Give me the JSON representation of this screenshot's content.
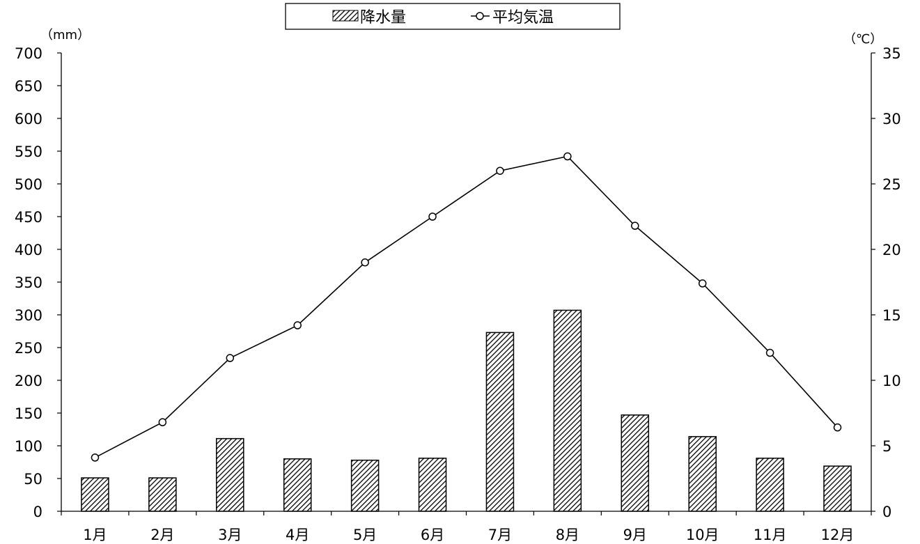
{
  "chart_data": {
    "type": "bar+line",
    "categories": [
      "1月",
      "2月",
      "3月",
      "4月",
      "5月",
      "6月",
      "7月",
      "8月",
      "9月",
      "10月",
      "11月",
      "12月"
    ],
    "series": [
      {
        "name": "降水量",
        "type": "bar",
        "axis": "left",
        "values": [
          51,
          51,
          111,
          80,
          78,
          81,
          273,
          307,
          147,
          114,
          81,
          69
        ]
      },
      {
        "name": "平均気温",
        "type": "line",
        "axis": "right",
        "values": [
          4.1,
          6.8,
          11.7,
          14.2,
          19.0,
          22.5,
          26.0,
          27.1,
          21.8,
          17.4,
          12.1,
          6.4
        ]
      }
    ],
    "y_left": {
      "unit": "（mm）",
      "ylim": [
        0,
        700
      ],
      "ticks": [
        0,
        50,
        100,
        150,
        200,
        250,
        300,
        350,
        400,
        450,
        500,
        550,
        600,
        650,
        700
      ]
    },
    "y_right": {
      "unit": "（℃）",
      "ylim": [
        0,
        35
      ],
      "ticks": [
        0,
        5,
        10,
        15,
        20,
        25,
        30,
        35
      ]
    },
    "legend": {
      "position": "top-center"
    },
    "grid": false,
    "colors": {
      "bar_fill_pattern": "diagonal-hatch",
      "bar_stroke": "#000000",
      "line": "#000000",
      "marker_fill": "#ffffff"
    }
  }
}
